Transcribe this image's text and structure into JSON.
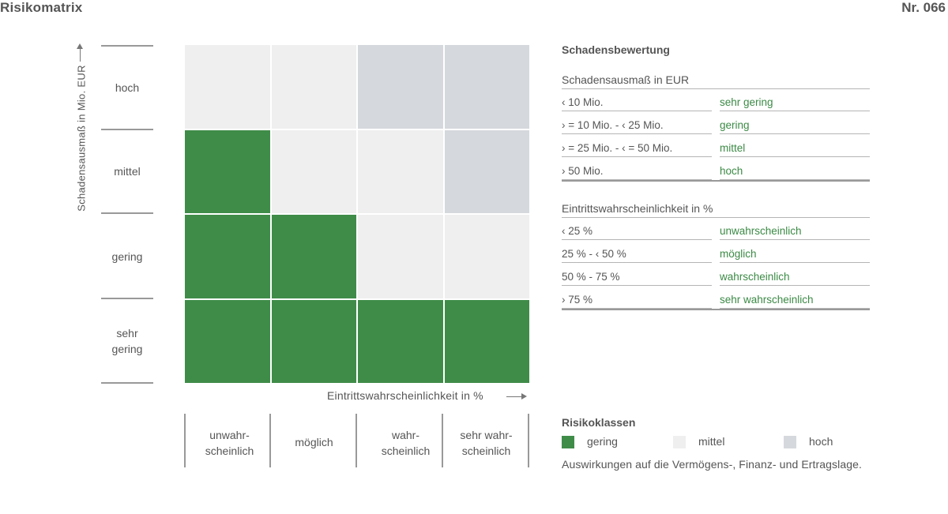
{
  "header": {
    "title": "Risikomatrix",
    "number": "Nr. 066"
  },
  "colors": {
    "gering": "#3f8c49",
    "mittel": "#efefef",
    "hoch": "#d5d8dc",
    "accent_text": "#3b8a45"
  },
  "chart_data": {
    "type": "heatmap",
    "y_axis_title": "Schadensausmaß in Mio. EUR",
    "x_axis_title": "Eintrittswahrscheinlichkeit in %",
    "y_categories": [
      "hoch",
      "mittel",
      "gering",
      "sehr gering"
    ],
    "x_categories": [
      "unwahr-scheinlich",
      "möglich",
      "wahr-scheinlich",
      "sehr wahr-scheinlich"
    ],
    "cells": [
      [
        "mittel",
        "mittel",
        "hoch",
        "hoch"
      ],
      [
        "gering",
        "mittel",
        "mittel",
        "hoch"
      ],
      [
        "gering",
        "gering",
        "mittel",
        "mittel"
      ],
      [
        "gering",
        "gering",
        "gering",
        "gering"
      ]
    ]
  },
  "y_labels": {
    "hoch": [
      "hoch"
    ],
    "mittel": [
      "mittel"
    ],
    "gering": [
      "gering"
    ],
    "sehr_gering": [
      "sehr",
      "gering"
    ]
  },
  "x_labels": {
    "unwahrscheinlich": [
      "unwahr-",
      "scheinlich"
    ],
    "moeglich": [
      "möglich"
    ],
    "wahrscheinlich": [
      "wahr-",
      "scheinlich"
    ],
    "sehr_wahrscheinlich": [
      "sehr wahr-",
      "scheinlich"
    ]
  },
  "schadensbewertung": {
    "title": "Schadensbewertung",
    "damage_header": "Schadensausmaß in EUR",
    "damage_rows": [
      {
        "range": "‹ 10 Mio.",
        "class": "sehr gering"
      },
      {
        "range": "› = 10 Mio. - ‹ 25 Mio.",
        "class": "gering"
      },
      {
        "range": "› = 25 Mio. - ‹ = 50 Mio.",
        "class": "mittel"
      },
      {
        "range": "› 50 Mio.",
        "class": "hoch"
      }
    ],
    "prob_header": "Eintrittswahrscheinlichkeit in %",
    "prob_rows": [
      {
        "range": "‹ 25 %",
        "class": "unwahrscheinlich"
      },
      {
        "range": "25 % - ‹ 50 %",
        "class": "möglich"
      },
      {
        "range": "50 % - 75 %",
        "class": "wahrscheinlich"
      },
      {
        "range": "› 75 %",
        "class": "sehr wahrscheinlich"
      }
    ]
  },
  "risikoklassen": {
    "title": "Risikoklassen",
    "items": [
      {
        "label": "gering",
        "color": "#3f8c49"
      },
      {
        "label": "mittel",
        "color": "#efefef"
      },
      {
        "label": "hoch",
        "color": "#d5d8dc"
      }
    ],
    "footnote": "Auswirkungen auf die Vermögens-, Finanz- und Ertragslage."
  }
}
